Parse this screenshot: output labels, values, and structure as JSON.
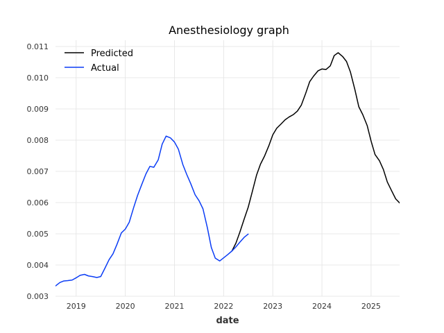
{
  "chart_data": {
    "type": "line",
    "title": "Anesthesiology graph",
    "xlabel": "date",
    "ylabel": "",
    "xlim": [
      2018.58,
      2025.58
    ],
    "ylim": [
      0.003,
      0.0112
    ],
    "x_ticks": [
      2019,
      2020,
      2021,
      2022,
      2023,
      2024,
      2025
    ],
    "x_tick_labels": [
      "2019",
      "2020",
      "2021",
      "2022",
      "2023",
      "2024",
      "2025"
    ],
    "y_ticks": [
      0.003,
      0.004,
      0.005,
      0.006,
      0.007,
      0.008,
      0.009,
      0.01,
      0.011
    ],
    "y_tick_labels": [
      "0.003",
      "0.004",
      "0.005",
      "0.006",
      "0.007",
      "0.008",
      "0.009",
      "0.010",
      "0.011"
    ],
    "grid": true,
    "legend_position": "top-left",
    "series": [
      {
        "name": "Predicted",
        "color": "#000000",
        "points": [
          [
            2022.17,
            0.00445
          ],
          [
            2022.25,
            0.0047
          ],
          [
            2022.33,
            0.00505
          ],
          [
            2022.42,
            0.00548
          ],
          [
            2022.5,
            0.00585
          ],
          [
            2022.58,
            0.00633
          ],
          [
            2022.67,
            0.00688
          ],
          [
            2022.75,
            0.00723
          ],
          [
            2022.83,
            0.00748
          ],
          [
            2022.92,
            0.00782
          ],
          [
            2023.0,
            0.00817
          ],
          [
            2023.08,
            0.00838
          ],
          [
            2023.17,
            0.00852
          ],
          [
            2023.25,
            0.00865
          ],
          [
            2023.33,
            0.00874
          ],
          [
            2023.42,
            0.00882
          ],
          [
            2023.5,
            0.00893
          ],
          [
            2023.58,
            0.00912
          ],
          [
            2023.67,
            0.0095
          ],
          [
            2023.75,
            0.00987
          ],
          [
            2023.83,
            0.01005
          ],
          [
            2023.92,
            0.01022
          ],
          [
            2024.0,
            0.01028
          ],
          [
            2024.08,
            0.01026
          ],
          [
            2024.17,
            0.01038
          ],
          [
            2024.25,
            0.01071
          ],
          [
            2024.33,
            0.0108
          ],
          [
            2024.42,
            0.01068
          ],
          [
            2024.5,
            0.01052
          ],
          [
            2024.58,
            0.01018
          ],
          [
            2024.67,
            0.00962
          ],
          [
            2024.75,
            0.00907
          ],
          [
            2024.83,
            0.00882
          ],
          [
            2024.92,
            0.00847
          ],
          [
            2025.0,
            0.00797
          ],
          [
            2025.08,
            0.00754
          ],
          [
            2025.17,
            0.00734
          ],
          [
            2025.25,
            0.00706
          ],
          [
            2025.33,
            0.00666
          ],
          [
            2025.42,
            0.00637
          ],
          [
            2025.5,
            0.00612
          ],
          [
            2025.58,
            0.00599
          ],
          [
            2025.67,
            0.00581
          ]
        ]
      },
      {
        "name": "Actual",
        "color": "#0a3cf5",
        "points": [
          [
            2018.58,
            0.00333
          ],
          [
            2018.67,
            0.00344
          ],
          [
            2018.75,
            0.00349
          ],
          [
            2018.83,
            0.0035
          ],
          [
            2018.92,
            0.00352
          ],
          [
            2019.0,
            0.00359
          ],
          [
            2019.08,
            0.00367
          ],
          [
            2019.17,
            0.0037
          ],
          [
            2019.25,
            0.00365
          ],
          [
            2019.33,
            0.00363
          ],
          [
            2019.42,
            0.0036
          ],
          [
            2019.5,
            0.00363
          ],
          [
            2019.58,
            0.00388
          ],
          [
            2019.67,
            0.00417
          ],
          [
            2019.75,
            0.00436
          ],
          [
            2019.83,
            0.00466
          ],
          [
            2019.92,
            0.00503
          ],
          [
            2020.0,
            0.00515
          ],
          [
            2020.08,
            0.00537
          ],
          [
            2020.17,
            0.00584
          ],
          [
            2020.25,
            0.00623
          ],
          [
            2020.33,
            0.00656
          ],
          [
            2020.42,
            0.00692
          ],
          [
            2020.5,
            0.00716
          ],
          [
            2020.58,
            0.00713
          ],
          [
            2020.67,
            0.00737
          ],
          [
            2020.75,
            0.00787
          ],
          [
            2020.83,
            0.00813
          ],
          [
            2020.92,
            0.00807
          ],
          [
            2021.0,
            0.00794
          ],
          [
            2021.08,
            0.00771
          ],
          [
            2021.17,
            0.00722
          ],
          [
            2021.25,
            0.0069
          ],
          [
            2021.33,
            0.00661
          ],
          [
            2021.42,
            0.00625
          ],
          [
            2021.5,
            0.00606
          ],
          [
            2021.58,
            0.0058
          ],
          [
            2021.67,
            0.00519
          ],
          [
            2021.75,
            0.00456
          ],
          [
            2021.83,
            0.00422
          ],
          [
            2021.92,
            0.00413
          ],
          [
            2022.0,
            0.00423
          ],
          [
            2022.08,
            0.00433
          ],
          [
            2022.17,
            0.00445
          ],
          [
            2022.25,
            0.00458
          ],
          [
            2022.33,
            0.00473
          ],
          [
            2022.42,
            0.00489
          ],
          [
            2022.5,
            0.00499
          ]
        ]
      }
    ]
  }
}
